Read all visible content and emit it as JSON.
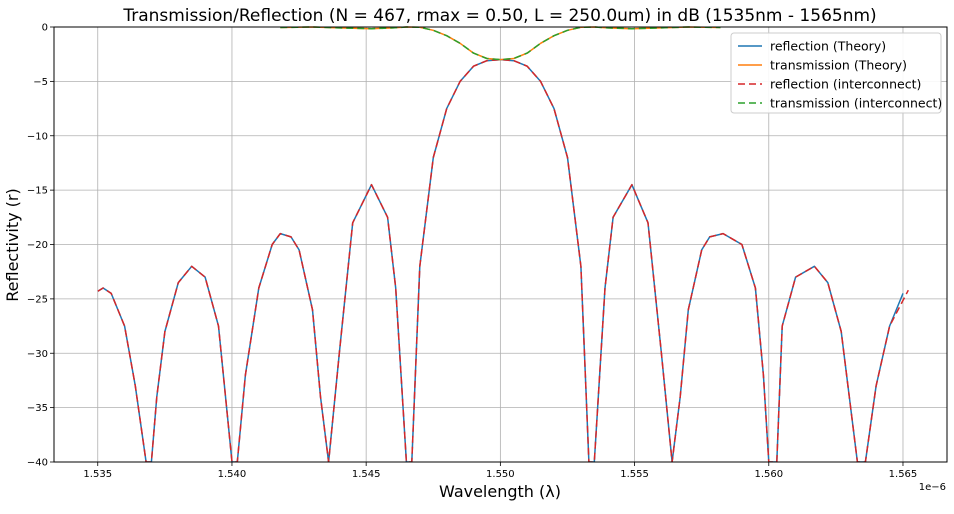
{
  "chart_data": {
    "type": "line",
    "title": "Transmission/Reflection (N = 467, rmax = 0.50, L = 250.0um) in dB (1535nm - 1565nm)",
    "xlabel": "Wavelength (λ)",
    "ylabel": "Reflectivity (r)",
    "x_offset_label": "1e−6",
    "xlim": [
      1.53337,
      1.56664
    ],
    "ylim": [
      -40,
      0
    ],
    "grid": true,
    "legend_position": "top-right",
    "x_ticks": [
      "1.535",
      "1.540",
      "1.545",
      "1.550",
      "1.555",
      "1.560",
      "1.565"
    ],
    "y_ticks": [
      "0",
      "−5",
      "−10",
      "−15",
      "−20",
      "−25",
      "−30",
      "−35",
      "−40"
    ],
    "x_tick_values": [
      1.535,
      1.54,
      1.545,
      1.55,
      1.555,
      1.56,
      1.565
    ],
    "y_tick_values": [
      0,
      -5,
      -10,
      -15,
      -20,
      -25,
      -30,
      -35,
      -40
    ],
    "series": [
      {
        "name": "reflection (Theory)",
        "color": "#1f77b4",
        "style": "solid",
        "x": [
          1.535,
          1.5352,
          1.5355,
          1.536,
          1.5364,
          1.5368,
          1.537,
          1.5372,
          1.5375,
          1.538,
          1.5385,
          1.539,
          1.5395,
          1.54,
          1.5402,
          1.5405,
          1.541,
          1.5415,
          1.5418,
          1.5422,
          1.5425,
          1.543,
          1.5433,
          1.5436,
          1.544,
          1.5445,
          1.5452,
          1.5458,
          1.5461,
          1.5465,
          1.5467,
          1.547,
          1.5475,
          1.548,
          1.5485,
          1.549,
          1.5495,
          1.55,
          1.5505,
          1.551,
          1.5515,
          1.552,
          1.5525,
          1.553,
          1.5533,
          1.5535,
          1.5539,
          1.5542,
          1.5549,
          1.5555,
          1.556,
          1.5564,
          1.5567,
          1.557,
          1.5575,
          1.5578,
          1.5583,
          1.559,
          1.5595,
          1.5598,
          1.56,
          1.5603,
          1.5605,
          1.561,
          1.5617,
          1.5622,
          1.5627,
          1.563,
          1.5633,
          1.5636,
          1.564,
          1.5645,
          1.565
        ],
        "y": [
          -24.3,
          -24.0,
          -24.5,
          -27.5,
          -33.0,
          -40.0,
          -40.0,
          -34.0,
          -28.0,
          -23.5,
          -22.0,
          -23.0,
          -27.5,
          -40.0,
          -40.0,
          -32.0,
          -24.0,
          -20.0,
          -19.0,
          -19.3,
          -20.5,
          -26.0,
          -34.0,
          -40.0,
          -30.0,
          -18.0,
          -14.5,
          -17.5,
          -24.0,
          -40.0,
          -40.0,
          -22.0,
          -12.0,
          -7.5,
          -5.0,
          -3.6,
          -3.1,
          -3.0,
          -3.1,
          -3.6,
          -5.0,
          -7.5,
          -12.0,
          -22.0,
          -40.0,
          -40.0,
          -24.0,
          -17.5,
          -14.5,
          -18.0,
          -30.0,
          -40.0,
          -34.0,
          -26.0,
          -20.5,
          -19.3,
          -19.0,
          -20.0,
          -24.0,
          -32.0,
          -40.0,
          -40.0,
          -27.5,
          -23.0,
          -22.0,
          -23.5,
          -28.0,
          -34.0,
          -40.0,
          -40.0,
          -33.0,
          -27.5,
          -24.5
        ]
      },
      {
        "name": "transmission (Theory)",
        "color": "#ff7f0e",
        "style": "solid",
        "x": [
          1.5418,
          1.543,
          1.544,
          1.5452,
          1.546,
          1.5465,
          1.547,
          1.5475,
          1.548,
          1.5485,
          1.549,
          1.5495,
          1.55,
          1.5505,
          1.551,
          1.5515,
          1.552,
          1.5525,
          1.553,
          1.5535,
          1.554,
          1.5549,
          1.556,
          1.557,
          1.5582
        ],
        "y": [
          -0.05,
          -0.0,
          -0.08,
          -0.16,
          -0.08,
          -0.0,
          -0.03,
          -0.3,
          -0.8,
          -1.5,
          -2.4,
          -2.9,
          -3.0,
          -2.9,
          -2.4,
          -1.5,
          -0.8,
          -0.3,
          -0.03,
          -0.0,
          -0.08,
          -0.16,
          -0.08,
          -0.0,
          -0.05
        ]
      },
      {
        "name": "reflection (interconnect)",
        "color": "#d62728",
        "style": "dashed",
        "x": [
          1.535,
          1.5352,
          1.5355,
          1.536,
          1.5364,
          1.5368,
          1.537,
          1.5372,
          1.5375,
          1.538,
          1.5385,
          1.539,
          1.5395,
          1.54,
          1.5402,
          1.5405,
          1.541,
          1.5415,
          1.5418,
          1.5422,
          1.5425,
          1.543,
          1.5433,
          1.5436,
          1.544,
          1.5445,
          1.5452,
          1.5458,
          1.5461,
          1.5465,
          1.5467,
          1.547,
          1.5475,
          1.548,
          1.5485,
          1.549,
          1.5495,
          1.55,
          1.5505,
          1.551,
          1.5515,
          1.552,
          1.5525,
          1.553,
          1.5533,
          1.5535,
          1.5539,
          1.5542,
          1.5549,
          1.5555,
          1.556,
          1.5564,
          1.5567,
          1.557,
          1.5575,
          1.5578,
          1.5583,
          1.559,
          1.5595,
          1.5598,
          1.56,
          1.5603,
          1.5605,
          1.561,
          1.5617,
          1.5622,
          1.5627,
          1.563,
          1.5633,
          1.5636,
          1.564,
          1.5645,
          1.5652
        ],
        "y": [
          -24.3,
          -24.0,
          -24.5,
          -27.5,
          -33.0,
          -40.0,
          -40.0,
          -34.0,
          -28.0,
          -23.5,
          -22.0,
          -23.0,
          -27.5,
          -40.0,
          -40.0,
          -32.0,
          -24.0,
          -20.0,
          -19.0,
          -19.3,
          -20.5,
          -26.0,
          -34.0,
          -40.0,
          -30.0,
          -18.0,
          -14.5,
          -17.5,
          -24.0,
          -40.0,
          -40.0,
          -22.0,
          -12.0,
          -7.5,
          -5.0,
          -3.6,
          -3.1,
          -3.0,
          -3.1,
          -3.6,
          -5.0,
          -7.5,
          -12.0,
          -22.0,
          -40.0,
          -40.0,
          -24.0,
          -17.5,
          -14.5,
          -18.0,
          -30.0,
          -40.0,
          -34.0,
          -26.0,
          -20.5,
          -19.3,
          -19.0,
          -20.0,
          -24.0,
          -32.0,
          -40.0,
          -40.0,
          -27.5,
          -23.0,
          -22.0,
          -23.5,
          -28.0,
          -34.0,
          -40.0,
          -40.0,
          -33.0,
          -27.5,
          -24.2
        ]
      },
      {
        "name": "transmission (interconnect)",
        "color": "#2ca02c",
        "style": "dashed",
        "x": [
          1.5418,
          1.543,
          1.544,
          1.5452,
          1.546,
          1.5465,
          1.547,
          1.5475,
          1.548,
          1.5485,
          1.549,
          1.5495,
          1.55,
          1.5505,
          1.551,
          1.5515,
          1.552,
          1.5525,
          1.553,
          1.5535,
          1.554,
          1.5549,
          1.556,
          1.557,
          1.5582
        ],
        "y": [
          -0.05,
          -0.0,
          -0.08,
          -0.16,
          -0.08,
          -0.0,
          -0.03,
          -0.3,
          -0.8,
          -1.5,
          -2.4,
          -2.9,
          -3.0,
          -2.9,
          -2.4,
          -1.5,
          -0.8,
          -0.3,
          -0.03,
          -0.0,
          -0.08,
          -0.16,
          -0.08,
          -0.0,
          -0.05
        ]
      }
    ]
  }
}
